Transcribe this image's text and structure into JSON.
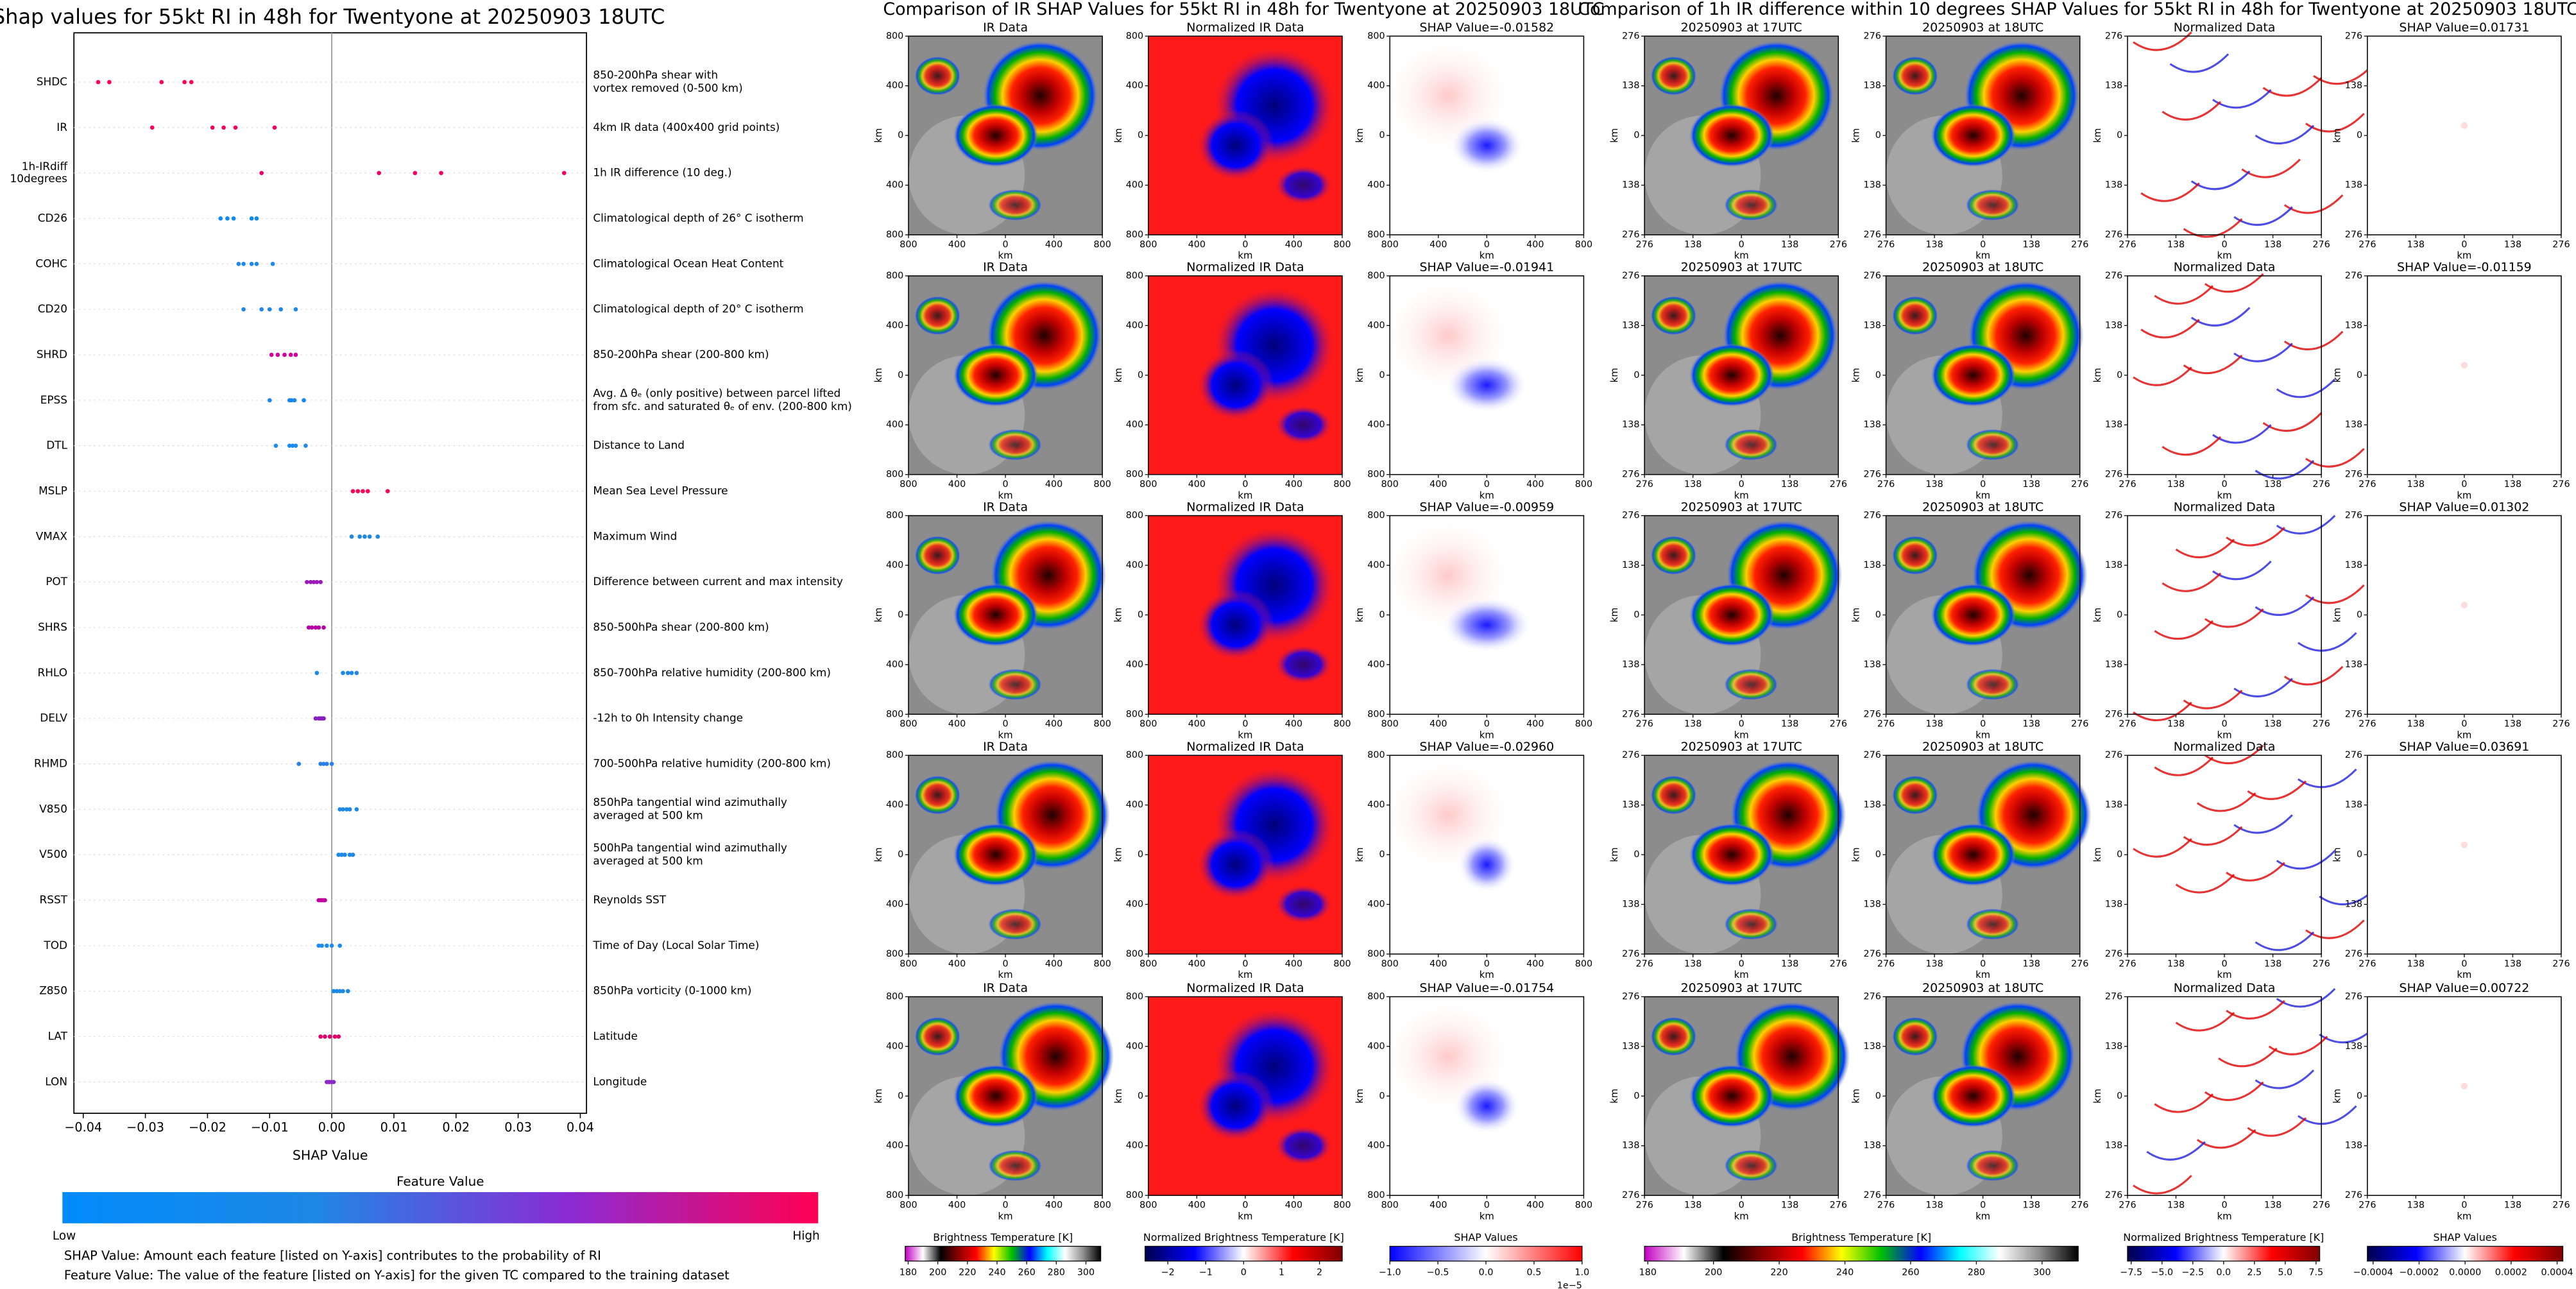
{
  "chart_data": [
    {
      "type": "beeswarm",
      "title": "Shap values for 55kt RI in 48h for Twentyone at 20250903 18UTC",
      "xlabel": "SHAP Value",
      "xlim": [
        -0.0415,
        0.041
      ],
      "xticks": [
        {
          "value": -0.04,
          "label": "−0.04"
        },
        {
          "value": -0.03,
          "label": "−0.03"
        },
        {
          "value": -0.02,
          "label": "−0.02"
        },
        {
          "value": -0.01,
          "label": "−0.01"
        },
        {
          "value": 0,
          "label": "0.00"
        },
        0.01,
        0.02,
        0.03,
        0.04
      ],
      "grid": true,
      "categories": [
        [
          "SHDC"
        ],
        [
          "IR"
        ],
        [
          "1h-IRdiff",
          "10degrees"
        ],
        [
          "CD26"
        ],
        [
          "COHC"
        ],
        [
          "CD20"
        ],
        [
          "SHRD"
        ],
        [
          "EPSS"
        ],
        [
          "DTL"
        ],
        [
          "MSLP"
        ],
        [
          "VMAX"
        ],
        [
          "POT"
        ],
        [
          "SHRS"
        ],
        [
          "RHLO"
        ],
        [
          "DELV"
        ],
        [
          "RHMD"
        ],
        [
          "V850"
        ],
        [
          "V500"
        ],
        [
          "RSST"
        ],
        [
          "TOD"
        ],
        [
          "Z850"
        ],
        [
          "LAT"
        ],
        [
          "LON"
        ]
      ],
      "descriptions": [
        [
          "850-200hPa shear with",
          "vortex removed (0-500 km)"
        ],
        [
          "4km IR data (400x400 grid points)"
        ],
        [
          "1h IR difference (10 deg.)"
        ],
        [
          "Climatological depth of 26° C isotherm"
        ],
        [
          "Climatological Ocean Heat Content"
        ],
        [
          "Climatological depth of 20° C isotherm"
        ],
        [
          "850-200hPa shear (200-800 km)"
        ],
        [
          "Avg. Δ θₑ (only positive) between parcel lifted",
          "from sfc. and saturated θₑ of env. (200-800 km)"
        ],
        [
          "Distance to Land"
        ],
        [
          "Mean Sea Level Pressure"
        ],
        [
          "Maximum Wind"
        ],
        [
          "Difference between current and max intensity"
        ],
        [
          "850-500hPa shear (200-800 km)"
        ],
        [
          "850-700hPa relative humidity (200-800 km)"
        ],
        [
          "-12h to 0h Intensity change"
        ],
        [
          "700-500hPa relative humidity (200-800 km)"
        ],
        [
          "850hPa tangential wind azimuthally",
          "averaged at 500 km"
        ],
        [
          "500hPa tangential wind azimuthally",
          "averaged at 500 km"
        ],
        [
          "Reynolds SST"
        ],
        [
          "Time of Day (Local Solar Time)"
        ],
        [
          "850hPa vorticity (0-1000 km)"
        ],
        [
          "Latitude"
        ],
        [
          "Longitude"
        ]
      ],
      "values": [
        [
          -0.0376,
          -0.0358,
          -0.0274,
          -0.0237,
          -0.0226
        ],
        [
          -0.0289,
          -0.0192,
          -0.0174,
          -0.0155,
          -0.0092
        ],
        [
          -0.0113,
          0.0076,
          0.0134,
          0.0176,
          0.0374
        ],
        [
          -0.0179,
          -0.0168,
          -0.0158,
          -0.0129,
          -0.0121
        ],
        [
          -0.015,
          -0.0142,
          -0.0129,
          -0.0121,
          -0.0095
        ],
        [
          -0.0142,
          -0.0113,
          -0.01,
          -0.0082,
          -0.0058
        ],
        [
          -0.0097,
          -0.0087,
          -0.0076,
          -0.0066,
          -0.0058
        ],
        [
          -0.01,
          -0.0068,
          -0.0065,
          -0.006,
          -0.0045
        ],
        [
          -0.009,
          -0.0068,
          -0.0063,
          -0.0058,
          -0.0042
        ],
        [
          0.0034,
          0.0042,
          0.005,
          0.0058,
          0.009
        ],
        [
          0.0032,
          0.0045,
          0.0053,
          0.0061,
          0.0074
        ],
        [
          -0.004,
          -0.0034,
          -0.0029,
          -0.0024,
          -0.0018
        ],
        [
          -0.0037,
          -0.0032,
          -0.0026,
          -0.0021,
          -0.0013
        ],
        [
          -0.0024,
          0.0018,
          0.0026,
          0.0032,
          0.004
        ],
        [
          -0.0026,
          -0.0021,
          -0.0018,
          -0.0016,
          -0.0013
        ],
        [
          -0.0053,
          -0.0018,
          -0.0013,
          -0.0008,
          0
        ],
        [
          0.0013,
          0.0018,
          0.0024,
          0.0029,
          0.004
        ],
        [
          0.0011,
          0.0016,
          0.0021,
          0.0029,
          0.0034
        ],
        [
          -0.0021,
          -0.0018,
          -0.0016,
          -0.0013,
          -0.0011
        ],
        [
          -0.0021,
          -0.0016,
          -0.0008,
          0,
          0.0013
        ],
        [
          0.0003,
          0.0008,
          0.0013,
          0.0018,
          0.0026
        ],
        [
          -0.0018,
          -0.0011,
          -0.0003,
          0.0005,
          0.0011
        ],
        [
          -0.0008,
          -0.0005,
          -0.0003,
          0,
          0.0003
        ]
      ],
      "colors": [
        "#ff0052",
        "#f5005f",
        "#ee0066",
        "#0f8af5",
        "#1e88f0",
        "#1e88e5",
        "#d0009a",
        "#1c86ef",
        "#1c8cef",
        "#ff0052",
        "#1e88e5",
        "#9b1bb8",
        "#b500a8",
        "#1e88e5",
        "#8a1fc0",
        "#2a80ea",
        "#1e88e5",
        "#1e88e5",
        "#c0009e",
        "#1a8cf0",
        "#1e88e5",
        "#e0006a",
        "#8a28c8"
      ],
      "colorbar": {
        "title": "Feature Value",
        "low_label": "Low",
        "high_label": "High",
        "colors": [
          "#008bfb",
          "#1e88e5",
          "#8a2bd6",
          "#ff0052"
        ]
      },
      "notes": [
        "SHAP Value: Amount each feature [listed on Y-axis] contributes to the probability of RI",
        "Feature Value: The value of the feature [listed on Y-axis] for the given TC compared to the training dataset"
      ]
    },
    {
      "type": "image_grid",
      "title": "Comparison of IR SHAP Values for 55kt RI in 48h for Twentyone at 20250903 18UTC",
      "rows": [
        [
          "IR Data",
          "Normalized IR Data",
          "SHAP Value=-0.01582"
        ],
        [
          "IR Data",
          "Normalized IR Data",
          "SHAP Value=-0.01941"
        ],
        [
          "IR Data",
          "Normalized IR Data",
          "SHAP Value=-0.00959"
        ],
        [
          "IR Data",
          "Normalized IR Data",
          "SHAP Value=-0.02960"
        ],
        [
          "IR Data",
          "Normalized IR Data",
          "SHAP Value=-0.01754"
        ]
      ],
      "xlabel": "km",
      "ylabel": "km",
      "xlim": [
        -800,
        800
      ],
      "ylim": [
        -800,
        800
      ],
      "xticks": [
        {
          "value": -800,
          "label": "800"
        },
        {
          "value": -400,
          "label": "400"
        },
        0,
        400,
        800
      ],
      "yticks": [
        {
          "value": -800,
          "label": "800"
        },
        {
          "value": -400,
          "label": "400"
        },
        0,
        400,
        800
      ],
      "colorbars": [
        {
          "label": "Brightness Temperature [K]",
          "lim": [
            178,
            310
          ],
          "ticks": [
            180,
            200,
            220,
            240,
            260,
            280,
            300
          ],
          "colors": [
            "#c000c0",
            "#ffffff",
            "#000000",
            "#8b0000",
            "#ff0000",
            "#ffff00",
            "#00c000",
            "#0000ff",
            "#00ffff",
            "#ffffff",
            "#909090",
            "#000000"
          ]
        },
        {
          "label": "Normalized Brightness Temperature [K]",
          "lim": [
            -2.6,
            2.6
          ],
          "ticks": [
            {
              "value": -2,
              "label": "−2"
            },
            {
              "value": -1,
              "label": "−1"
            },
            0,
            1,
            2
          ],
          "colors": [
            "#00004c",
            "#0000ff",
            "#ffffff",
            "#ff0000",
            "#800000"
          ]
        },
        {
          "label": "SHAP Values",
          "lim": [
            -1,
            1
          ],
          "ticks": [
            {
              "value": -1,
              "label": "−1.0"
            },
            {
              "value": -0.5,
              "label": "−0.5"
            },
            {
              "value": 0,
              "label": "0.0"
            },
            0.5,
            {
              "value": 1,
              "label": "1.0"
            }
          ],
          "offset_label": "1e−5",
          "colors": [
            "#0000ff",
            "#ffffff",
            "#ff0000"
          ]
        }
      ]
    },
    {
      "type": "image_grid",
      "title": "Comparison of 1h IR difference within 10 degrees SHAP Values for 55kt RI in 48h for Twentyone at 20250903 18UTC",
      "rows": [
        [
          "20250903 at 17UTC",
          "20250903 at 18UTC",
          "Normalized Data",
          "SHAP Value=0.01731"
        ],
        [
          "20250903 at 17UTC",
          "20250903 at 18UTC",
          "Normalized Data",
          "SHAP Value=-0.01159"
        ],
        [
          "20250903 at 17UTC",
          "20250903 at 18UTC",
          "Normalized Data",
          "SHAP Value=0.01302"
        ],
        [
          "20250903 at 17UTC",
          "20250903 at 18UTC",
          "Normalized Data",
          "SHAP Value=0.03691"
        ],
        [
          "20250903 at 17UTC",
          "20250903 at 18UTC",
          "Normalized Data",
          "SHAP Value=0.00722"
        ]
      ],
      "xlabel": "km",
      "ylabel": "km",
      "xlim": [
        -276,
        276
      ],
      "ylim": [
        -276,
        276
      ],
      "xticks": [
        {
          "value": -276,
          "label": "276"
        },
        {
          "value": -138,
          "label": "138"
        },
        0,
        138,
        276
      ],
      "yticks": [
        {
          "value": -276,
          "label": "276"
        },
        {
          "value": -138,
          "label": "138"
        },
        0,
        138,
        276
      ],
      "colorbars": [
        {
          "label": "Brightness Temperature [K]",
          "lim": [
            179,
            311
          ],
          "ticks": [
            180,
            200,
            220,
            240,
            260,
            280,
            300
          ],
          "colors": [
            "#c000c0",
            "#ffffff",
            "#000000",
            "#8b0000",
            "#ff0000",
            "#ffff00",
            "#00c000",
            "#0000ff",
            "#00ffff",
            "#ffffff",
            "#909090",
            "#000000"
          ]
        },
        {
          "label": "Normalized Brightness Temperature [K]",
          "lim": [
            -7.8,
            7.8
          ],
          "ticks": [
            {
              "value": -7.5,
              "label": "−7.5"
            },
            {
              "value": -5,
              "label": "−5.0"
            },
            {
              "value": -2.5,
              "label": "−2.5"
            },
            {
              "value": 0,
              "label": "0.0"
            },
            2.5,
            {
              "value": 5,
              "label": "5.0"
            },
            7.5
          ],
          "colors": [
            "#00004c",
            "#0000ff",
            "#ffffff",
            "#ff0000",
            "#800000"
          ]
        },
        {
          "label": "SHAP Values",
          "lim": [
            -0.000425,
            0.000425
          ],
          "ticks": [
            {
              "value": -0.0004,
              "label": "−0.0004"
            },
            {
              "value": -0.0002,
              "label": "−0.0002"
            },
            {
              "value": 0,
              "label": "0.0000"
            },
            0.0002,
            0.0004
          ],
          "colors": [
            "#00004c",
            "#0000ff",
            "#ffffff",
            "#ff0000",
            "#800000"
          ]
        }
      ]
    }
  ]
}
